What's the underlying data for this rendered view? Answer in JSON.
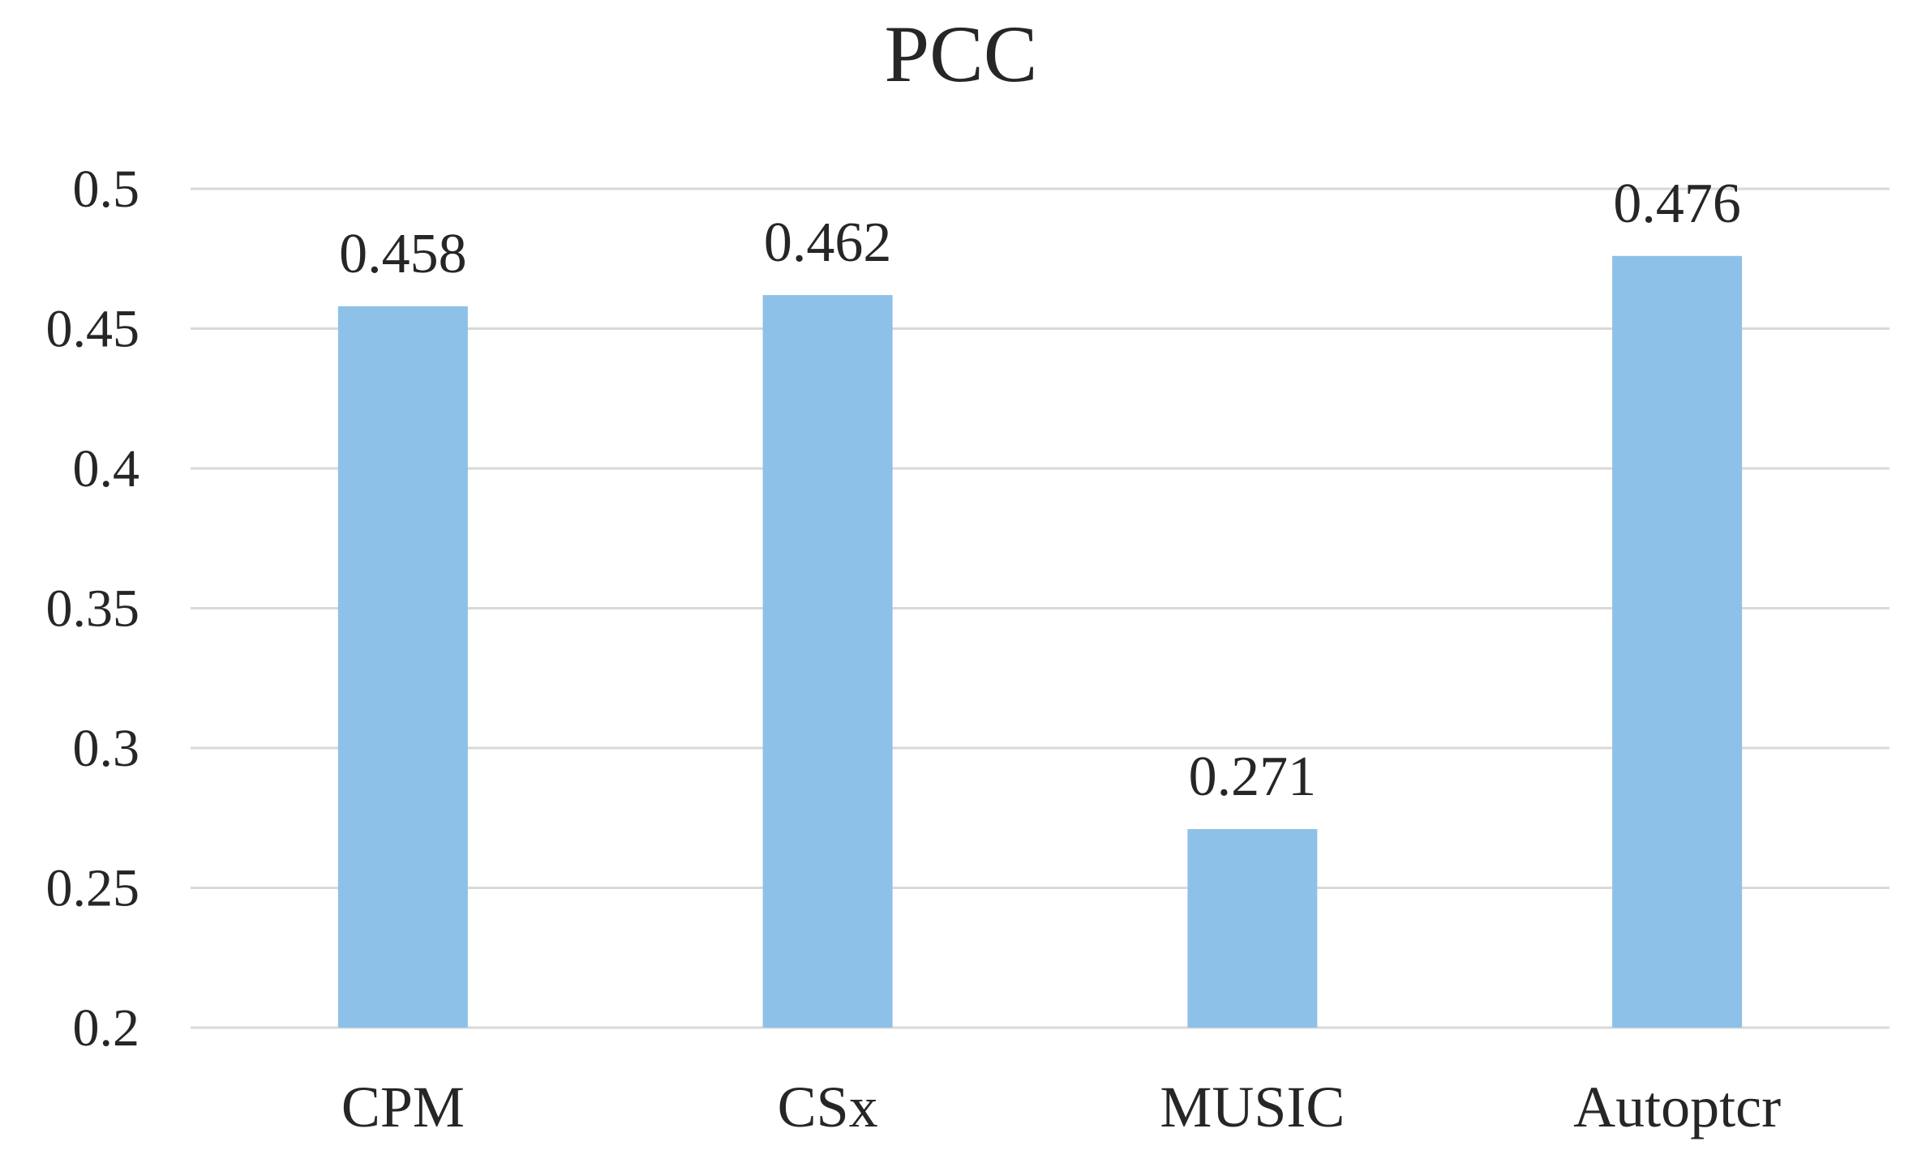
{
  "chart_data": {
    "type": "bar",
    "title": "PCC",
    "xlabel": "",
    "ylabel": "",
    "categories": [
      "CPM",
      "CSx",
      "MUSIC",
      "Autoptcr"
    ],
    "values": [
      0.458,
      0.462,
      0.271,
      0.476
    ],
    "data_labels": [
      "0.458",
      "0.462",
      "0.271",
      "0.476"
    ],
    "ylim": [
      0.2,
      0.5
    ],
    "y_ticks": [
      0.2,
      0.25,
      0.3,
      0.35,
      0.4,
      0.45,
      0.5
    ],
    "y_tick_labels": [
      "0.2",
      "0.25",
      "0.3",
      "0.35",
      "0.4",
      "0.45",
      "0.5"
    ],
    "grid": true,
    "legend": "none",
    "bar_color": "#8dc1e7"
  }
}
